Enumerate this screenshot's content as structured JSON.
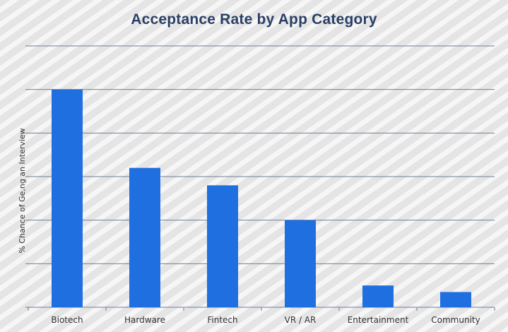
{
  "colors": {
    "bar": "#1f6fe0",
    "gridline": "#6f7f95",
    "title": "#2a3f66"
  },
  "chart_data": {
    "type": "bar",
    "title": "Acceptance Rate by App Category",
    "xlabel": "",
    "ylabel": "% Chance of Ge,ng an Interview",
    "categories": [
      "Biotech",
      "Hardware",
      "Fintech",
      "VR / AR",
      "Entertainment",
      "Community"
    ],
    "values": [
      5.0,
      3.2,
      2.8,
      2.0,
      0.5,
      0.35
    ],
    "ylim": [
      0,
      6
    ],
    "y_tick_count": 6,
    "y_tick_labels_shown": false,
    "grid": true,
    "legend": "none"
  }
}
